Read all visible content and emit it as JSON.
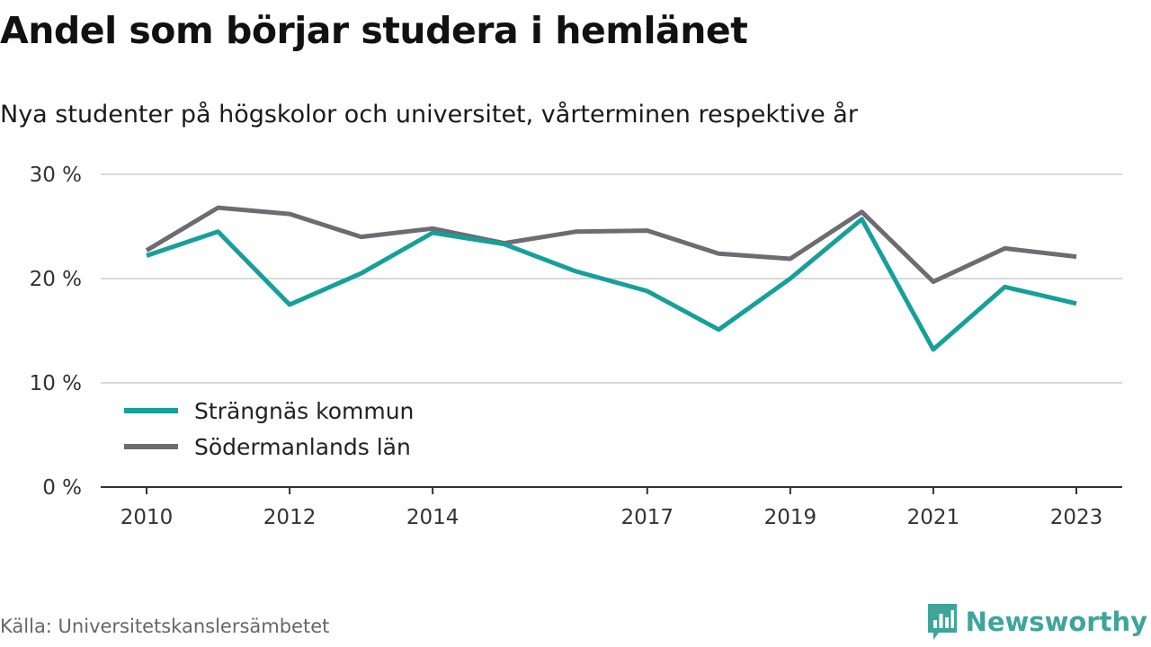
{
  "header": {
    "title": "Andel som börjar studera i hemlänet",
    "subtitle": "Nya studenter på högskolor och universitet, vårterminen respektive år"
  },
  "footer": {
    "source": "Källa: Universitetskanslersämbetet",
    "brand": "Newsworthy",
    "brand_icon": "bar-chart-speech-bubble-icon"
  },
  "colors": {
    "strangnas": "#16a09a",
    "sodermanland": "#6d6c73",
    "grid": "#d9d9d9",
    "axis": "#333333",
    "brand": "#3fa59a"
  },
  "chart_data": {
    "type": "line",
    "x": [
      2010,
      2011,
      2012,
      2013,
      2014,
      2015,
      2016,
      2017,
      2018,
      2019,
      2020,
      2021,
      2022,
      2023
    ],
    "x_tick_labels": [
      "2010",
      "2012",
      "2014",
      "2017",
      "2019",
      "2021",
      "2023"
    ],
    "y_tick_labels": [
      "0 %",
      "10 %",
      "20 %",
      "30 %"
    ],
    "ylim": [
      0,
      30
    ],
    "grid": true,
    "legend_position": "bottom-left",
    "series": [
      {
        "name": "Strängnäs kommun",
        "color": "#16a09a",
        "values": [
          22.2,
          24.5,
          17.5,
          20.5,
          24.4,
          23.3,
          20.7,
          18.8,
          15.1,
          20.0,
          25.7,
          13.2,
          19.2,
          17.6
        ]
      },
      {
        "name": "Södermanlands län",
        "color": "#6d6c73",
        "values": [
          22.7,
          26.8,
          26.2,
          24.0,
          24.8,
          23.4,
          24.5,
          24.6,
          22.4,
          21.9,
          26.4,
          19.7,
          22.9,
          22.1
        ]
      }
    ]
  }
}
